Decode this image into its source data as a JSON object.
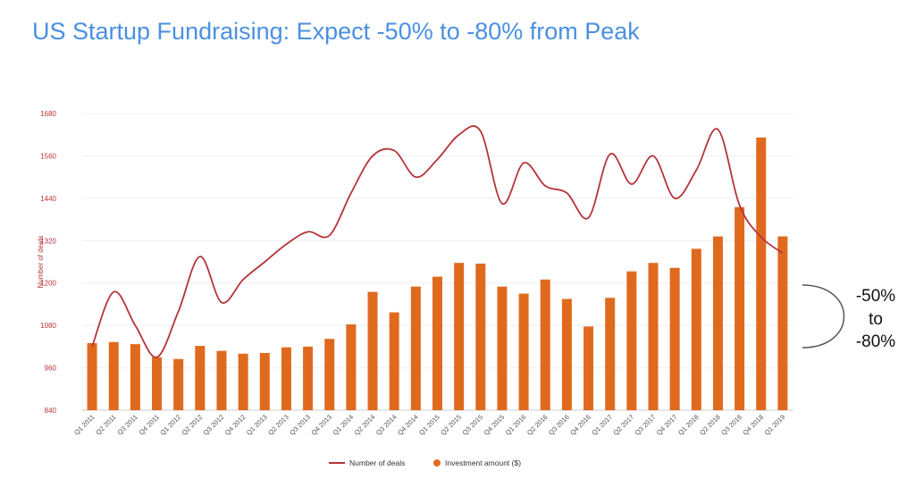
{
  "page": {
    "title": "US Startup Fundraising: Expect -50% to -80% from Peak"
  },
  "annotation": {
    "line1": "-50%",
    "line2": "to",
    "line3": "-80%"
  },
  "colors": {
    "title": "#4a90e2",
    "line": "#b5343a",
    "bars": "#df6a1e",
    "axis_text": "#b5343a",
    "grid": "#eeeeee"
  },
  "chart_data": {
    "type": "bar",
    "categories": [
      "Q1 2011",
      "Q2 2011",
      "Q3 2011",
      "Q4 2011",
      "Q1 2012",
      "Q2 2012",
      "Q3 2012",
      "Q4 2012",
      "Q1 2013",
      "Q2 2013",
      "Q3 2013",
      "Q4 2013",
      "Q1 2014",
      "Q2 2014",
      "Q3 2014",
      "Q4 2014",
      "Q1 2015",
      "Q2 2015",
      "Q3 2015",
      "Q4 2015",
      "Q1 2016",
      "Q2 2016",
      "Q3 2016",
      "Q4 2016",
      "Q1 2017",
      "Q2 2017",
      "Q3 2017",
      "Q4 2017",
      "Q1 2018",
      "Q2 2018",
      "Q3 2018",
      "Q4 2018",
      "Q1 2019"
    ],
    "ylabel": "Number of deals",
    "ylim": [
      840,
      1680
    ],
    "yticks": [
      840,
      960,
      1080,
      1200,
      1320,
      1440,
      1560,
      1680
    ],
    "grid": true,
    "legend_position": "bottom",
    "series": [
      {
        "name": "Number of deals",
        "type": "line",
        "values": [
          1020,
          1175,
          1080,
          990,
          1120,
          1275,
          1145,
          1210,
          1260,
          1310,
          1345,
          1335,
          1455,
          1560,
          1575,
          1500,
          1550,
          1620,
          1630,
          1425,
          1540,
          1475,
          1455,
          1385,
          1565,
          1480,
          1560,
          1440,
          1520,
          1635,
          1420,
          1330,
          1285
        ]
      },
      {
        "name": "Investment amount ($)",
        "type": "bar",
        "values": [
          1030,
          1033,
          1027,
          990,
          985,
          1022,
          1008,
          1000,
          1002,
          1018,
          1020,
          1042,
          1083,
          1175,
          1117,
          1190,
          1218,
          1257,
          1255,
          1190,
          1170,
          1210,
          1155,
          1077,
          1158,
          1233,
          1257,
          1243,
          1297,
          1332,
          1415,
          1612,
          1332
        ]
      }
    ]
  }
}
